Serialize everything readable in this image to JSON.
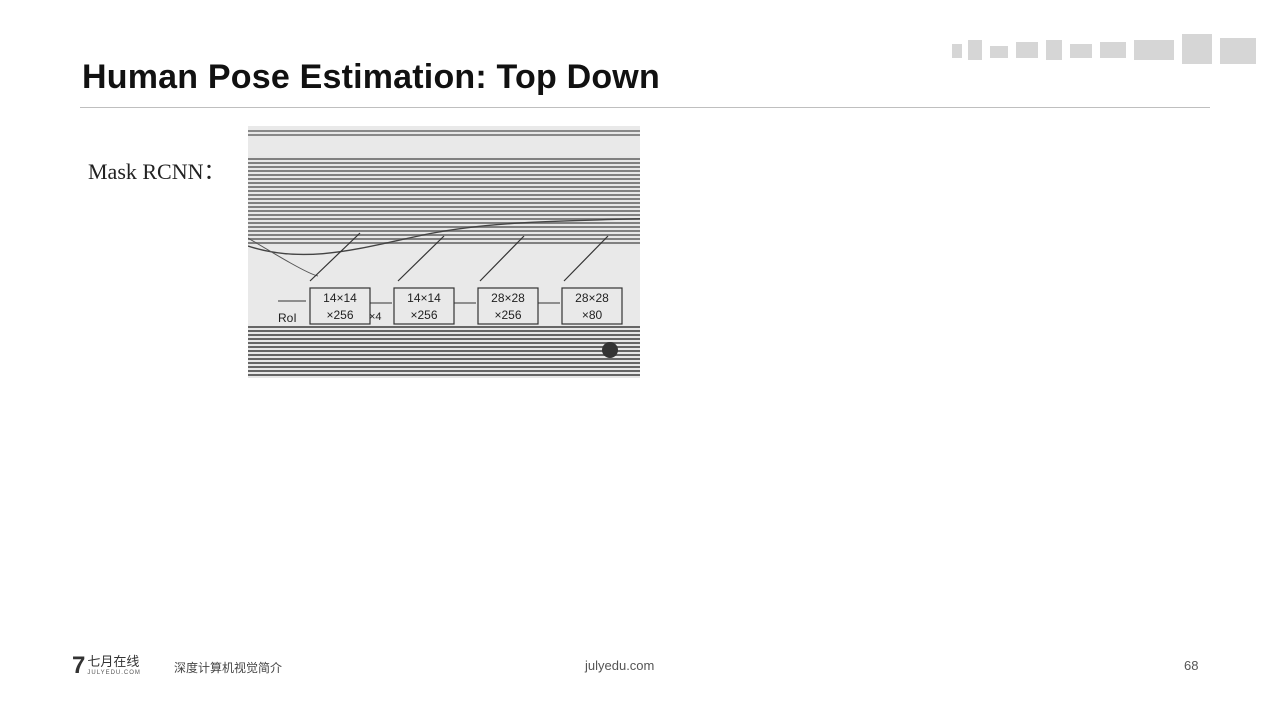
{
  "slide": {
    "title": "Human Pose Estimation: Top Down",
    "mask_label": "Mask RCNN："
  },
  "figure": {
    "rows": [
      {
        "label": "RoI",
        "boxes": []
      },
      {
        "label": "",
        "boxes": [
          {
            "top": "14×14",
            "bottom": "×256"
          },
          {
            "top": "14×14",
            "bottom": "×256"
          },
          {
            "top": "28×28",
            "bottom": "×256"
          },
          {
            "top": "28×28",
            "bottom": "×80"
          }
        ]
      }
    ],
    "repeat_label": "×4"
  },
  "footer": {
    "logo_mark": "7",
    "brand_cn": "七月在线",
    "brand_url": "JULYEDU.COM",
    "course_title": "深度计算机视觉简介",
    "site_url": "julyedu.com",
    "page_number": "68"
  }
}
